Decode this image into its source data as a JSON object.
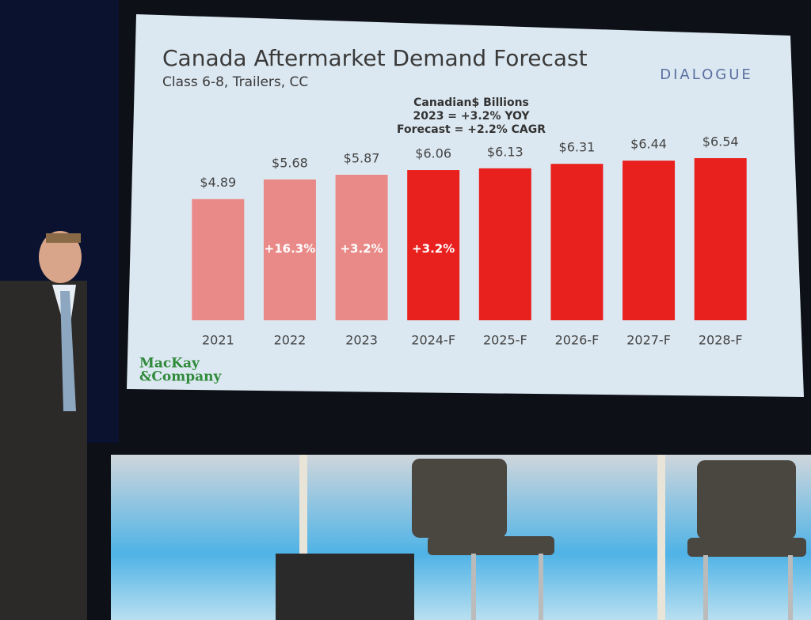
{
  "chart_data": {
    "type": "bar",
    "title": "Canada Aftermarket Demand Forecast",
    "subtitle": "Class 6-8, Trailers, CC",
    "notes": [
      "Canadian$ Billions",
      "2023 = +3.2% YOY",
      "Forecast = +2.2% CAGR"
    ],
    "categories": [
      "2021",
      "2022",
      "2023",
      "2024-F",
      "2025-F",
      "2026-F",
      "2027-F",
      "2028-F"
    ],
    "values": [
      4.89,
      5.68,
      5.87,
      6.06,
      6.13,
      6.31,
      6.44,
      6.54
    ],
    "value_labels": [
      "$4.89",
      "$5.68",
      "$5.87",
      "$6.06",
      "$6.13",
      "$6.31",
      "$6.44",
      "$6.54"
    ],
    "bar_labels": [
      null,
      "+16.3%",
      "+3.2%",
      "+3.2%",
      null,
      null,
      null,
      null
    ],
    "colors": [
      "#e98a88",
      "#e98a88",
      "#e98a88",
      "#e8201e",
      "#e8201e",
      "#e8201e",
      "#e8201e",
      "#e8201e"
    ],
    "logo": [
      "MacKay",
      "&Company"
    ],
    "event_logo": "DIALOGUE"
  }
}
